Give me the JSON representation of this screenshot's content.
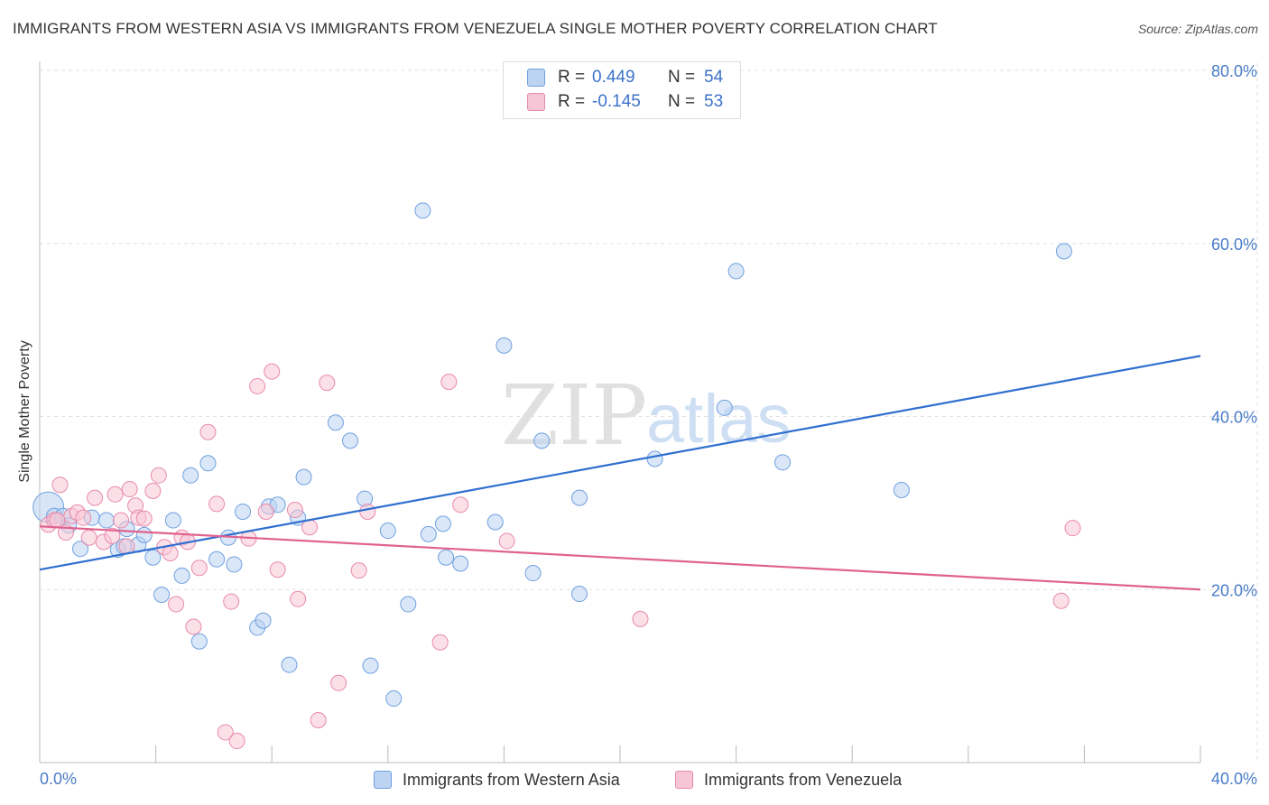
{
  "chart_data": {
    "type": "scatter",
    "title": "IMMIGRANTS FROM WESTERN ASIA VS IMMIGRANTS FROM VENEZUELA SINGLE MOTHER POVERTY CORRELATION CHART",
    "source": "Source: ZipAtlas.com",
    "xlabel": "",
    "ylabel": "Single Mother Poverty",
    "xlim": [
      0,
      40
    ],
    "ylim": [
      0,
      80
    ],
    "x_tick_labels": [
      "0.0%",
      "40.0%"
    ],
    "y_ticks": [
      20,
      40,
      60,
      80
    ],
    "y_tick_labels": [
      "20.0%",
      "40.0%",
      "60.0%",
      "80.0%"
    ],
    "watermark": {
      "zip": "ZIP",
      "atlas": "atlas"
    },
    "legend": [
      {
        "r_label": "R =",
        "r_value": "0.449",
        "n_label": "N =",
        "n_value": "54"
      },
      {
        "r_label": "R =",
        "r_value": "-0.145",
        "n_label": "N =",
        "n_value": "53"
      }
    ],
    "series": [
      {
        "name": "Immigrants from Western Asia",
        "color": "#6fa0e0",
        "fill": "#bcd3f2",
        "trend": {
          "x": [
            0,
            40
          ],
          "y": [
            22.3,
            47.0
          ],
          "color": "#2f6fd0"
        },
        "points": [
          [
            0.3,
            29.5
          ],
          [
            0.5,
            28.5
          ],
          [
            0.8,
            28.5
          ],
          [
            1.0,
            27.4
          ],
          [
            1.4,
            24.7
          ],
          [
            1.8,
            28.3
          ],
          [
            2.3,
            28.0
          ],
          [
            2.7,
            24.6
          ],
          [
            2.9,
            25.0
          ],
          [
            3.0,
            27.0
          ],
          [
            3.4,
            25.2
          ],
          [
            3.6,
            26.3
          ],
          [
            3.9,
            23.7
          ],
          [
            4.2,
            19.4
          ],
          [
            4.6,
            28.0
          ],
          [
            4.9,
            21.6
          ],
          [
            5.2,
            33.2
          ],
          [
            5.5,
            14.0
          ],
          [
            5.8,
            34.6
          ],
          [
            6.1,
            23.5
          ],
          [
            6.5,
            26.0
          ],
          [
            6.7,
            22.9
          ],
          [
            7.0,
            29.0
          ],
          [
            7.5,
            15.6
          ],
          [
            7.7,
            16.4
          ],
          [
            7.9,
            29.6
          ],
          [
            8.2,
            29.8
          ],
          [
            8.6,
            11.3
          ],
          [
            8.9,
            28.3
          ],
          [
            9.1,
            33.0
          ],
          [
            10.2,
            39.3
          ],
          [
            10.7,
            37.2
          ],
          [
            11.2,
            30.5
          ],
          [
            11.4,
            11.2
          ],
          [
            12.0,
            26.8
          ],
          [
            12.2,
            7.4
          ],
          [
            12.7,
            18.3
          ],
          [
            13.2,
            63.8
          ],
          [
            13.4,
            26.4
          ],
          [
            13.9,
            27.6
          ],
          [
            14.0,
            23.7
          ],
          [
            14.5,
            23.0
          ],
          [
            15.7,
            27.8
          ],
          [
            16.0,
            48.2
          ],
          [
            17.0,
            21.9
          ],
          [
            17.3,
            37.2
          ],
          [
            18.6,
            30.6
          ],
          [
            18.6,
            19.5
          ],
          [
            21.2,
            35.1
          ],
          [
            23.6,
            41.0
          ],
          [
            24.0,
            56.8
          ],
          [
            25.6,
            34.7
          ],
          [
            29.7,
            31.5
          ],
          [
            35.3,
            59.1
          ]
        ]
      },
      {
        "name": "Immigrants from Venezuela",
        "color": "#e88aab",
        "fill": "#f7c6d6",
        "trend": {
          "x": [
            0,
            40
          ],
          "y": [
            27.3,
            20.0
          ],
          "color": "#e0628e"
        },
        "points": [
          [
            0.3,
            27.5
          ],
          [
            0.5,
            28.0
          ],
          [
            0.7,
            32.1
          ],
          [
            0.9,
            26.6
          ],
          [
            1.1,
            28.5
          ],
          [
            1.3,
            28.9
          ],
          [
            1.5,
            28.3
          ],
          [
            1.7,
            26.0
          ],
          [
            1.9,
            30.6
          ],
          [
            2.2,
            25.5
          ],
          [
            2.5,
            26.2
          ],
          [
            2.6,
            31.0
          ],
          [
            2.8,
            28.0
          ],
          [
            3.0,
            25.0
          ],
          [
            3.1,
            31.6
          ],
          [
            3.3,
            29.7
          ],
          [
            3.4,
            28.3
          ],
          [
            3.6,
            28.2
          ],
          [
            3.9,
            31.4
          ],
          [
            4.1,
            33.2
          ],
          [
            4.3,
            24.9
          ],
          [
            4.5,
            24.2
          ],
          [
            4.7,
            18.3
          ],
          [
            4.9,
            26.0
          ],
          [
            5.1,
            25.5
          ],
          [
            5.3,
            15.7
          ],
          [
            5.5,
            22.5
          ],
          [
            5.8,
            38.2
          ],
          [
            6.1,
            29.9
          ],
          [
            6.4,
            3.5
          ],
          [
            6.6,
            18.6
          ],
          [
            6.8,
            2.5
          ],
          [
            7.2,
            25.9
          ],
          [
            7.5,
            43.5
          ],
          [
            7.8,
            29.0
          ],
          [
            8.0,
            45.2
          ],
          [
            8.2,
            22.3
          ],
          [
            8.8,
            29.2
          ],
          [
            8.9,
            18.9
          ],
          [
            9.3,
            27.2
          ],
          [
            9.6,
            4.9
          ],
          [
            9.9,
            43.9
          ],
          [
            10.3,
            9.2
          ],
          [
            11.0,
            22.2
          ],
          [
            11.3,
            29.0
          ],
          [
            13.8,
            13.9
          ],
          [
            14.1,
            44.0
          ],
          [
            14.5,
            29.8
          ],
          [
            16.1,
            25.6
          ],
          [
            20.7,
            16.6
          ],
          [
            35.2,
            18.7
          ],
          [
            35.6,
            27.1
          ],
          [
            0.6,
            28.0
          ]
        ]
      }
    ]
  }
}
